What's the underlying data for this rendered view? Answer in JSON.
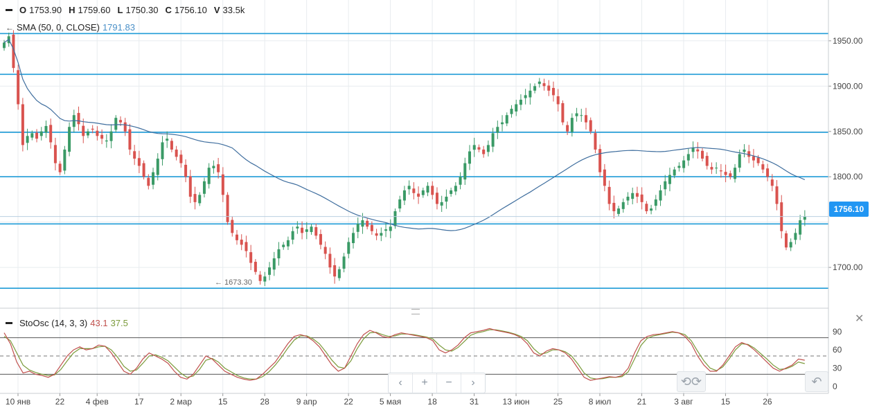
{
  "ohlc_header": {
    "o_label": "O",
    "o_value": "1753.90",
    "h_label": "H",
    "h_value": "1759.60",
    "l_label": "L",
    "l_value": "1750.30",
    "c_label": "C",
    "c_value": "1756.10",
    "v_label": "V",
    "v_value": "33.5k"
  },
  "sma_legend": {
    "arrow": "←",
    "name": "SMA (50, 0, CLOSE)",
    "value": "1791.83",
    "color": "#4a90c8"
  },
  "stoch_legend": {
    "name": "StoOsc (14, 3, 3)",
    "k_value": "43.1",
    "d_value": "37.5",
    "k_color": "#c0504d",
    "d_color": "#7a9a3a"
  },
  "price_tag": "1756.10",
  "low_marker": "← 1673.30",
  "nav": {
    "zoom_out": "‹",
    "plus": "+",
    "minus": "−",
    "zoom_in": "›"
  },
  "undo_icon": "↶",
  "colors": {
    "up": "#3a9a66",
    "down": "#d9534f",
    "hline": "#1e9bd7",
    "sma": "#3f6e9e",
    "grid": "#e8ecef"
  },
  "chart_data": {
    "type": "candlestick",
    "price_axis": {
      "min": 1655,
      "max": 1995,
      "ticks": [
        1950,
        1900,
        1850,
        1800,
        1750,
        1700
      ],
      "tick_labels": [
        "1950.00",
        "1900.00",
        "1850.00",
        "1800.00",
        "1700.00"
      ]
    },
    "x_axis": {
      "labels": [
        "10 янв",
        "22",
        "4 фев",
        "17",
        "2 мар",
        "15",
        "28",
        "9 апр",
        "22",
        "5 мая",
        "18",
        "31",
        "13 июн",
        "25",
        "8 июл",
        "21",
        "3 авг",
        "15",
        "26"
      ],
      "label_bar_index": [
        0,
        9,
        17,
        26,
        35,
        44,
        53,
        62,
        71,
        80,
        89,
        98,
        107,
        116,
        125,
        134,
        143,
        152,
        161
      ]
    },
    "horizontal_levels": [
      1958,
      1913,
      1849,
      1800,
      1748,
      1677
    ],
    "last_price": 1756.1,
    "closes": [
      1948,
      1955,
      1920,
      1880,
      1835,
      1845,
      1848,
      1842,
      1850,
      1856,
      1838,
      1815,
      1805,
      1830,
      1855,
      1868,
      1858,
      1845,
      1850,
      1852,
      1845,
      1842,
      1840,
      1850,
      1865,
      1860,
      1850,
      1830,
      1820,
      1812,
      1800,
      1790,
      1805,
      1820,
      1838,
      1842,
      1830,
      1822,
      1815,
      1800,
      1778,
      1772,
      1780,
      1795,
      1810,
      1812,
      1805,
      1780,
      1750,
      1738,
      1730,
      1725,
      1718,
      1705,
      1695,
      1685,
      1690,
      1700,
      1710,
      1720,
      1725,
      1730,
      1740,
      1745,
      1738,
      1742,
      1745,
      1735,
      1725,
      1715,
      1700,
      1690,
      1698,
      1712,
      1728,
      1738,
      1748,
      1752,
      1745,
      1740,
      1735,
      1738,
      1742,
      1745,
      1762,
      1775,
      1785,
      1790,
      1782,
      1778,
      1785,
      1790,
      1780,
      1770,
      1772,
      1778,
      1785,
      1790,
      1800,
      1815,
      1828,
      1835,
      1830,
      1825,
      1835,
      1848,
      1855,
      1860,
      1868,
      1875,
      1880,
      1885,
      1890,
      1895,
      1900,
      1905,
      1900,
      1895,
      1890,
      1880,
      1860,
      1850,
      1865,
      1870,
      1868,
      1860,
      1850,
      1830,
      1805,
      1790,
      1770,
      1762,
      1765,
      1772,
      1778,
      1782,
      1778,
      1772,
      1762,
      1765,
      1775,
      1785,
      1795,
      1802,
      1808,
      1812,
      1818,
      1825,
      1832,
      1828,
      1820,
      1812,
      1808,
      1810,
      1806,
      1802,
      1800,
      1810,
      1825,
      1830,
      1822,
      1818,
      1815,
      1808,
      1800,
      1790,
      1770,
      1740,
      1722,
      1728,
      1738,
      1752,
      1756.1
    ],
    "sma": {
      "name": "SMA (50, 0, CLOSE)",
      "value": 1791.83
    },
    "stochastic": {
      "name": "StoOsc (14, 3, 3)",
      "k": 43.1,
      "d": 37.5,
      "axis_ticks": [
        90,
        60,
        30,
        0
      ],
      "levels": [
        80,
        20
      ],
      "midline": 50,
      "k_series": [
        88,
        70,
        40,
        22,
        25,
        20,
        18,
        15,
        20,
        35,
        50,
        60,
        65,
        60,
        62,
        68,
        66,
        55,
        40,
        25,
        20,
        30,
        45,
        55,
        50,
        45,
        38,
        25,
        15,
        12,
        20,
        35,
        50,
        45,
        35,
        25,
        20,
        15,
        12,
        10,
        12,
        20,
        30,
        40,
        55,
        70,
        82,
        85,
        82,
        75,
        65,
        50,
        35,
        25,
        30,
        50,
        70,
        85,
        92,
        88,
        82,
        80,
        85,
        88,
        86,
        84,
        82,
        80,
        75,
        60,
        55,
        60,
        68,
        80,
        88,
        90,
        92,
        95,
        92,
        90,
        88,
        85,
        80,
        70,
        55,
        50,
        58,
        62,
        60,
        55,
        45,
        30,
        15,
        10,
        12,
        14,
        16,
        15,
        18,
        30,
        55,
        75,
        82,
        85,
        86,
        88,
        90,
        88,
        82,
        70,
        50,
        35,
        25,
        25,
        35,
        50,
        65,
        72,
        68,
        60,
        50,
        40,
        30,
        25,
        30,
        35,
        45,
        43.1
      ],
      "d_series": [
        82,
        75,
        55,
        35,
        27,
        23,
        20,
        18,
        19,
        28,
        42,
        55,
        62,
        62,
        62,
        65,
        66,
        60,
        48,
        33,
        25,
        27,
        38,
        50,
        52,
        48,
        42,
        32,
        22,
        15,
        17,
        28,
        43,
        46,
        40,
        30,
        24,
        18,
        14,
        12,
        12,
        16,
        24,
        35,
        48,
        63,
        76,
        83,
        83,
        78,
        70,
        57,
        43,
        32,
        30,
        42,
        62,
        78,
        88,
        89,
        85,
        82,
        83,
        86,
        86,
        85,
        83,
        81,
        78,
        68,
        60,
        58,
        64,
        74,
        84,
        88,
        90,
        93,
        93,
        91,
        89,
        86,
        82,
        75,
        62,
        53,
        55,
        60,
        60,
        57,
        50,
        37,
        22,
        14,
        12,
        13,
        15,
        15,
        16,
        24,
        45,
        67,
        79,
        83,
        85,
        87,
        89,
        88,
        85,
        75,
        58,
        42,
        30,
        26,
        32,
        45,
        60,
        70,
        69,
        63,
        54,
        45,
        35,
        28,
        29,
        33,
        40,
        37.5
      ]
    }
  }
}
